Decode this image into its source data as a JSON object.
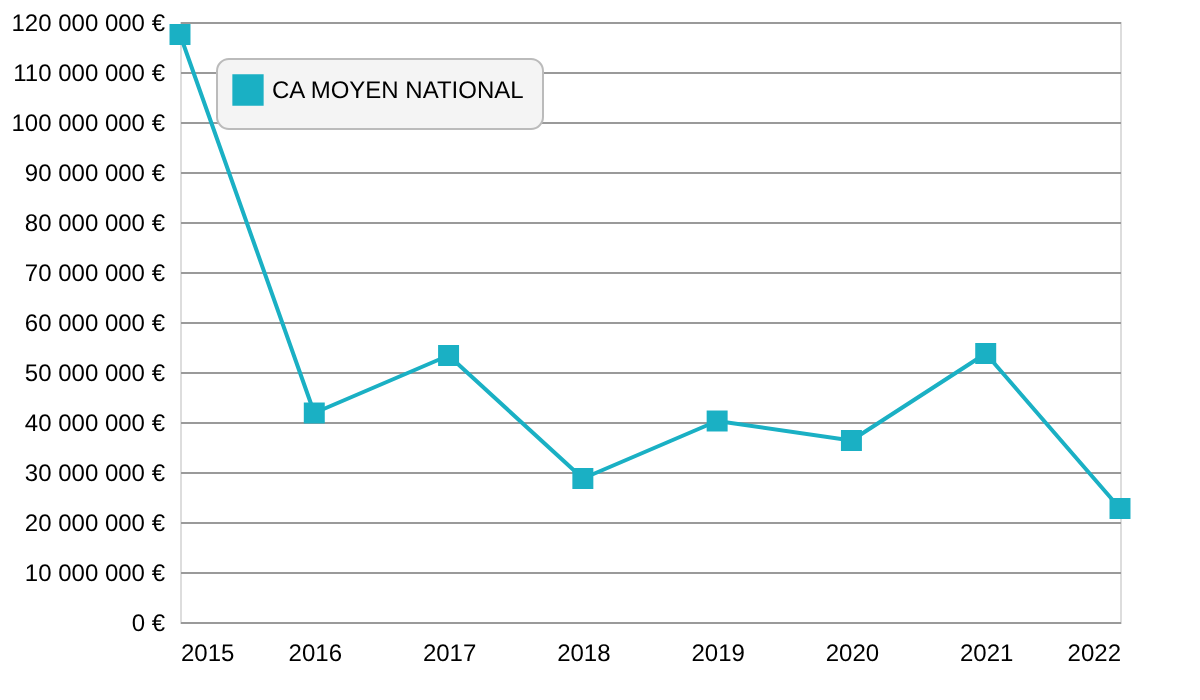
{
  "chart_data": {
    "type": "line",
    "x": [
      2015,
      2016,
      2017,
      2018,
      2019,
      2020,
      2021,
      2022
    ],
    "series": [
      {
        "name": "CA MOYEN NATIONAL",
        "color": "#1ab0c4",
        "values": [
          117500000,
          41800000,
          53300000,
          28700000,
          40200000,
          36300000,
          53700000,
          22700000
        ]
      }
    ],
    "xlim": [
      2015,
      2022
    ],
    "xticks": [
      2015,
      2016,
      2017,
      2018,
      2019,
      2020,
      2021,
      2022
    ],
    "ylim": [
      0,
      120000000
    ],
    "yticks": [
      {
        "value": 0,
        "label": "0 €"
      },
      {
        "value": 10000000,
        "label": "10 000 000 €"
      },
      {
        "value": 20000000,
        "label": "20 000 000 €"
      },
      {
        "value": 30000000,
        "label": "30 000 000 €"
      },
      {
        "value": 40000000,
        "label": "40 000 000 €"
      },
      {
        "value": 50000000,
        "label": "50 000 000 €"
      },
      {
        "value": 60000000,
        "label": "60 000 000 €"
      },
      {
        "value": 70000000,
        "label": "70 000 000 €"
      },
      {
        "value": 80000000,
        "label": "80 000 000 €"
      },
      {
        "value": 90000000,
        "label": "90 000 000 €"
      },
      {
        "value": 100000000,
        "label": "100 000 000 €"
      },
      {
        "value": 110000000,
        "label": "110 000 000 €"
      },
      {
        "value": 120000000,
        "label": "120 000 000 €"
      }
    ],
    "grid": "y",
    "legend": "top left",
    "marker": "square",
    "line_style": "solid"
  }
}
